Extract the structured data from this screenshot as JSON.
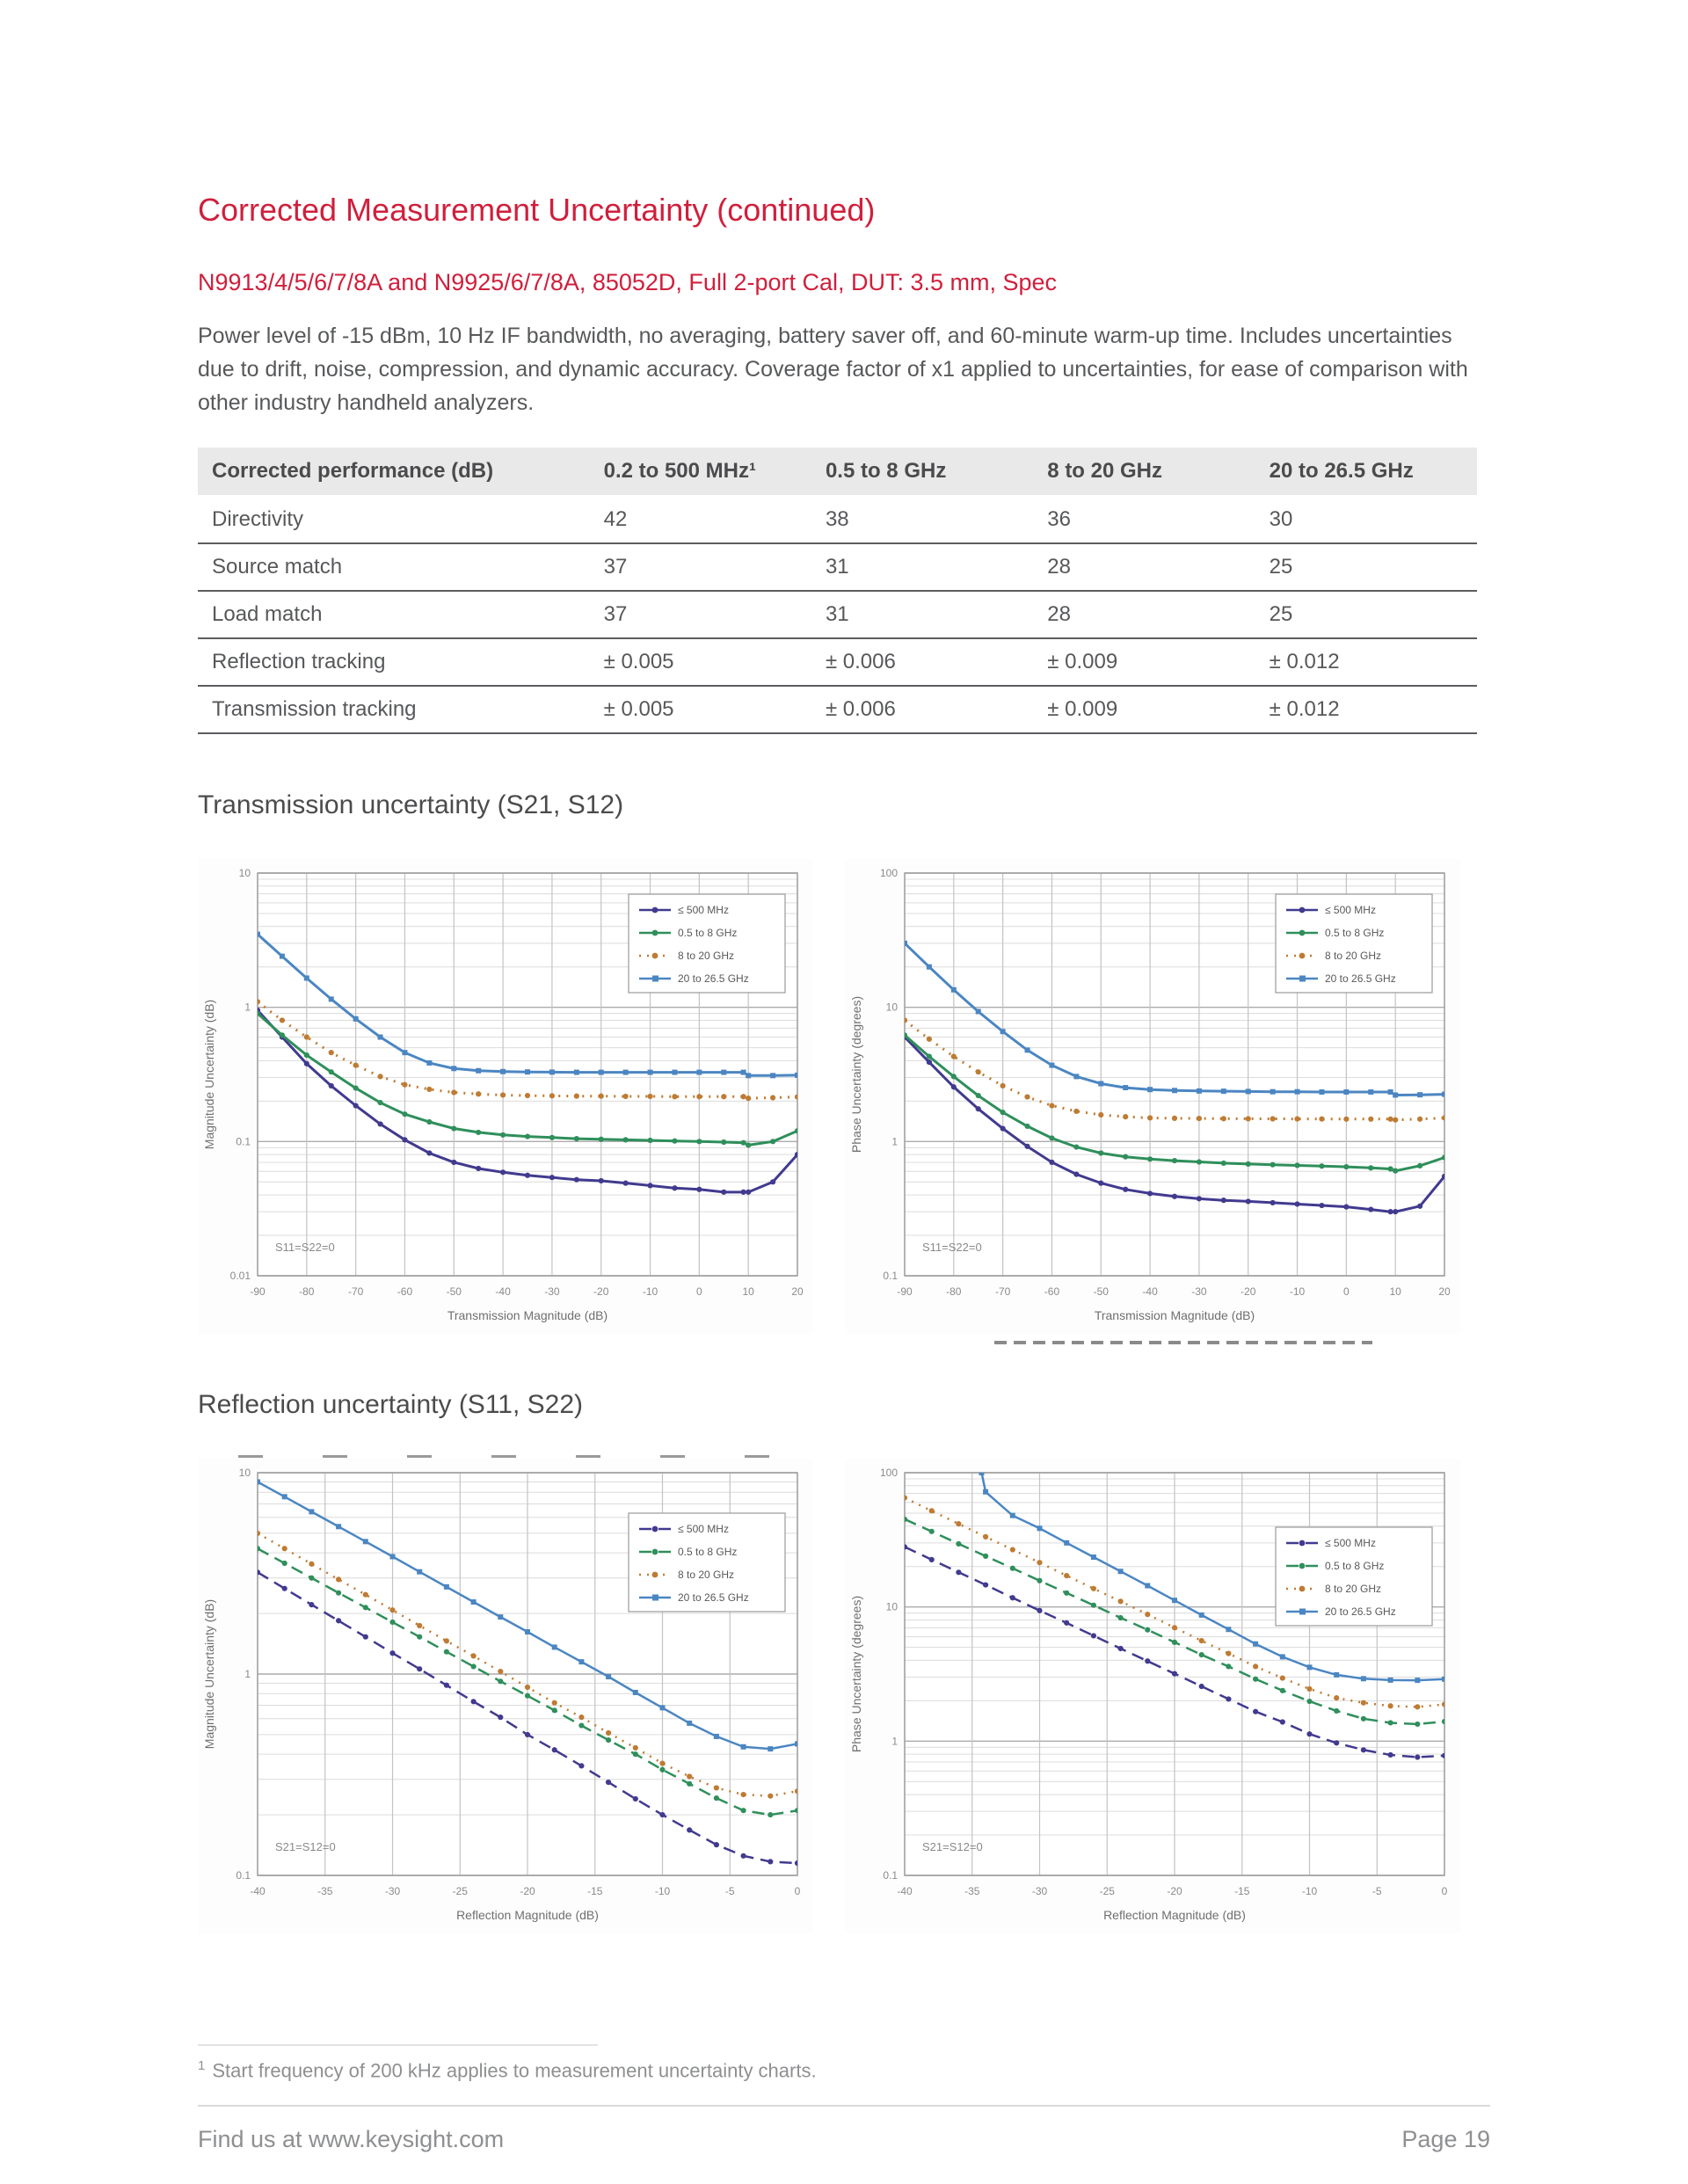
{
  "page": {
    "title": "Corrected Measurement Uncertainty (continued)",
    "subtitle": "N9913/4/5/6/7/8A and N9925/6/7/8A, 85052D, Full 2-port Cal, DUT: 3.5 mm, Spec",
    "intro": "Power level of -15 dBm, 10 Hz IF bandwidth, no averaging, battery saver off, and 60-minute warm-up time. Includes uncertainties due to drift, noise, compression, and dynamic accuracy. Coverage factor of x1 applied to uncertainties, for ease of comparison with other industry handheld analyzers.",
    "footnote_marker": "1",
    "footnote": "Start frequency of 200 kHz applies to measurement uncertainty charts.",
    "footer_left": "Find us at www.keysight.com",
    "footer_right": "Page 19"
  },
  "sections": {
    "transmission": "Transmission uncertainty (S21, S12)",
    "reflection": "Reflection uncertainty (S11, S22)"
  },
  "table": {
    "headers": [
      "Corrected performance (dB)",
      "0.2 to 500 MHz¹",
      "0.5 to 8 GHz",
      "8 to 20 GHz",
      "20 to 26.5 GHz"
    ],
    "rows": [
      [
        "Directivity",
        "42",
        "38",
        "36",
        "30"
      ],
      [
        "Source match",
        "37",
        "31",
        "28",
        "25"
      ],
      [
        "Load match",
        "37",
        "31",
        "28",
        "25"
      ],
      [
        "Reflection tracking",
        "± 0.005",
        "± 0.006",
        "± 0.009",
        "± 0.012"
      ],
      [
        "Transmission tracking",
        "± 0.005",
        "± 0.006",
        "± 0.009",
        "± 0.012"
      ]
    ]
  },
  "colors": {
    "heading_red": "#D01F3C",
    "body_gray": "#57585A",
    "series_500mhz": "#413A8F",
    "series_0p5to8": "#2F8F5B",
    "series_8to20": "#BE7B33",
    "series_20to26p5": "#4B86C2"
  },
  "chart_data": [
    {
      "type": "line",
      "name": "transmission-magnitude-chart",
      "xlabel": "Transmission Magnitude (dB)",
      "ylabel": "Magnitude Uncertainty  (dB)",
      "annotation": "S11=S22=0",
      "xlim": [
        -90,
        20
      ],
      "xticks": [
        -90,
        -80,
        -70,
        -60,
        -50,
        -40,
        -30,
        -20,
        -10,
        0,
        10,
        20
      ],
      "ylog": true,
      "ylim": [
        0.01,
        10
      ],
      "legend_position": "top-right",
      "legend_dy": 24,
      "grid": true,
      "line_width": 3,
      "x": [
        -90,
        -85,
        -80,
        -75,
        -70,
        -65,
        -60,
        -55,
        -50,
        -45,
        -40,
        -35,
        -30,
        -25,
        -20,
        -15,
        -10,
        -5,
        0,
        5,
        9,
        10,
        15,
        20
      ],
      "series": [
        {
          "name": "≤ 500 MHz",
          "color": "#413A8F",
          "dash": "none",
          "marker": "circle",
          "y": [
            0.95,
            0.6,
            0.38,
            0.26,
            0.185,
            0.135,
            0.103,
            0.082,
            0.07,
            0.063,
            0.059,
            0.056,
            0.054,
            0.052,
            0.051,
            0.049,
            0.047,
            0.045,
            0.044,
            0.042,
            0.042,
            0.042,
            0.05,
            0.08
          ]
        },
        {
          "name": "0.5 to 8 GHz",
          "color": "#2F8F5B",
          "dash": "none",
          "marker": "circle",
          "y": [
            0.9,
            0.62,
            0.44,
            0.33,
            0.25,
            0.195,
            0.16,
            0.14,
            0.125,
            0.117,
            0.112,
            0.109,
            0.107,
            0.105,
            0.104,
            0.103,
            0.102,
            0.101,
            0.1,
            0.099,
            0.098,
            0.094,
            0.1,
            0.12
          ]
        },
        {
          "name": "8 to 20 GHz",
          "color": "#BE7B33",
          "dash": "2 7",
          "marker": "circle",
          "y": [
            1.1,
            0.8,
            0.6,
            0.46,
            0.37,
            0.305,
            0.265,
            0.245,
            0.232,
            0.226,
            0.222,
            0.22,
            0.219,
            0.218,
            0.218,
            0.217,
            0.217,
            0.216,
            0.216,
            0.216,
            0.216,
            0.21,
            0.212,
            0.215
          ]
        },
        {
          "name": "20 to 26.5 GHz",
          "color": "#4B86C2",
          "dash": "none",
          "marker": "square",
          "y": [
            3.5,
            2.4,
            1.65,
            1.15,
            0.82,
            0.6,
            0.46,
            0.385,
            0.35,
            0.337,
            0.332,
            0.33,
            0.329,
            0.328,
            0.328,
            0.328,
            0.328,
            0.328,
            0.328,
            0.328,
            0.328,
            0.31,
            0.31,
            0.312
          ]
        }
      ]
    },
    {
      "type": "line",
      "name": "transmission-phase-chart",
      "xlabel": "Transmission Magnitude (dB)",
      "ylabel": "Phase Uncertainty (degrees)",
      "annotation": "S11=S22=0",
      "xlim": [
        -90,
        20
      ],
      "xticks": [
        -90,
        -80,
        -70,
        -60,
        -50,
        -40,
        -30,
        -20,
        -10,
        0,
        10,
        20
      ],
      "ylog": true,
      "ylim": [
        0.1,
        100
      ],
      "legend_position": "top-right",
      "legend_dy": 24,
      "grid": true,
      "line_width": 3,
      "x": [
        -90,
        -85,
        -80,
        -75,
        -70,
        -65,
        -60,
        -55,
        -50,
        -45,
        -40,
        -35,
        -30,
        -25,
        -20,
        -15,
        -10,
        -5,
        0,
        5,
        9,
        10,
        15,
        20
      ],
      "series": [
        {
          "name": "≤ 500 MHz",
          "color": "#413A8F",
          "dash": "none",
          "marker": "circle",
          "y": [
            6.0,
            3.9,
            2.55,
            1.75,
            1.25,
            0.92,
            0.7,
            0.57,
            0.49,
            0.44,
            0.41,
            0.39,
            0.375,
            0.365,
            0.358,
            0.35,
            0.342,
            0.334,
            0.326,
            0.312,
            0.3,
            0.3,
            0.33,
            0.55
          ]
        },
        {
          "name": "0.5 to 8 GHz",
          "color": "#2F8F5B",
          "dash": "none",
          "marker": "circle",
          "y": [
            6.2,
            4.3,
            3.05,
            2.2,
            1.65,
            1.3,
            1.06,
            0.91,
            0.82,
            0.77,
            0.74,
            0.72,
            0.705,
            0.69,
            0.68,
            0.672,
            0.664,
            0.656,
            0.648,
            0.636,
            0.625,
            0.605,
            0.66,
            0.76
          ]
        },
        {
          "name": "8 to 20 GHz",
          "color": "#BE7B33",
          "dash": "2 7",
          "marker": "circle",
          "y": [
            8.0,
            5.8,
            4.3,
            3.3,
            2.6,
            2.15,
            1.85,
            1.68,
            1.58,
            1.53,
            1.5,
            1.49,
            1.485,
            1.48,
            1.478,
            1.476,
            1.474,
            1.472,
            1.47,
            1.47,
            1.47,
            1.45,
            1.47,
            1.5
          ]
        },
        {
          "name": "20 to 26.5 GHz",
          "color": "#4B86C2",
          "dash": "none",
          "marker": "square",
          "y": [
            30,
            20,
            13.5,
            9.3,
            6.6,
            4.8,
            3.7,
            3.05,
            2.7,
            2.52,
            2.44,
            2.4,
            2.38,
            2.37,
            2.36,
            2.35,
            2.35,
            2.34,
            2.34,
            2.34,
            2.34,
            2.22,
            2.23,
            2.25
          ]
        }
      ]
    },
    {
      "type": "line",
      "name": "reflection-magnitude-chart",
      "xlabel": "Reflection Magnitude (dB)",
      "ylabel": "Magnitude Uncertainty (dB)",
      "annotation": "S21=S12=0",
      "xlim": [
        -40,
        0
      ],
      "xticks": [
        -40,
        -35,
        -30,
        -25,
        -20,
        -15,
        -10,
        -5,
        0
      ],
      "ylog": true,
      "ylim": [
        0.1,
        10
      ],
      "legend_position": "top-right",
      "legend_dy": 46,
      "grid": true,
      "line_width": 2.5,
      "x": [
        -40,
        -38,
        -36,
        -34,
        -32,
        -30,
        -28,
        -26,
        -24,
        -22,
        -20,
        -18,
        -16,
        -14,
        -12,
        -10,
        -8,
        -6,
        -4,
        -2,
        0
      ],
      "series": [
        {
          "name": "≤ 500 MHz",
          "color": "#413A8F",
          "dash": "14 8",
          "marker": "circle",
          "y": [
            3.2,
            2.66,
            2.21,
            1.84,
            1.53,
            1.27,
            1.06,
            0.88,
            0.73,
            0.61,
            0.5,
            0.42,
            0.35,
            0.29,
            0.24,
            0.2,
            0.168,
            0.142,
            0.125,
            0.117,
            0.115
          ]
        },
        {
          "name": "0.5 to 8 GHz",
          "color": "#2F8F5B",
          "dash": "14 8",
          "marker": "circle",
          "y": [
            4.2,
            3.55,
            3.0,
            2.53,
            2.14,
            1.81,
            1.53,
            1.29,
            1.09,
            0.92,
            0.78,
            0.66,
            0.555,
            0.47,
            0.4,
            0.335,
            0.285,
            0.242,
            0.21,
            0.2,
            0.21
          ]
        },
        {
          "name": "8 to 20 GHz",
          "color": "#BE7B33",
          "dash": "2 7",
          "marker": "circle",
          "y": [
            5.0,
            4.2,
            3.52,
            2.95,
            2.48,
            2.08,
            1.74,
            1.46,
            1.23,
            1.03,
            0.86,
            0.72,
            0.61,
            0.51,
            0.43,
            0.36,
            0.31,
            0.272,
            0.252,
            0.248,
            0.262
          ]
        },
        {
          "name": "20 to 26.5 GHz",
          "color": "#4B86C2",
          "dash": "none",
          "marker": "square",
          "y": [
            9.0,
            7.6,
            6.4,
            5.4,
            4.55,
            3.83,
            3.22,
            2.71,
            2.28,
            1.92,
            1.62,
            1.36,
            1.15,
            0.97,
            0.81,
            0.68,
            0.57,
            0.49,
            0.435,
            0.425,
            0.45
          ]
        }
      ]
    },
    {
      "type": "line",
      "name": "reflection-phase-chart",
      "xlabel": "Reflection Magnitude (dB)",
      "ylabel": "Phase Uncertainty (degrees)",
      "annotation": "S21=S12=0",
      "xlim": [
        -40,
        0
      ],
      "xticks": [
        -40,
        -35,
        -30,
        -25,
        -20,
        -15,
        -10,
        -5,
        0
      ],
      "ylog": true,
      "ylim": [
        0.1,
        100
      ],
      "legend_position": "top-right",
      "legend_dy": 62,
      "grid": true,
      "line_width": 2.5,
      "x": [
        -40,
        -38,
        -36,
        -34,
        -32,
        -30,
        -28,
        -26,
        -24,
        -22,
        -20,
        -18,
        -16,
        -14,
        -12,
        -10,
        -8,
        -6,
        -4,
        -2,
        0
      ],
      "series": [
        {
          "name": "≤ 500 MHz",
          "color": "#413A8F",
          "dash": "14 8",
          "marker": "circle",
          "y": [
            28,
            22.5,
            18.1,
            14.6,
            11.7,
            9.4,
            7.6,
            6.1,
            4.9,
            3.95,
            3.18,
            2.56,
            2.06,
            1.66,
            1.39,
            1.13,
            0.97,
            0.86,
            0.79,
            0.76,
            0.78
          ]
        },
        {
          "name": "0.5 to 8 GHz",
          "color": "#2F8F5B",
          "dash": "14 8",
          "marker": "circle",
          "y": [
            45,
            36.5,
            29.5,
            23.9,
            19.4,
            15.7,
            12.7,
            10.3,
            8.3,
            6.75,
            5.45,
            4.4,
            3.6,
            2.9,
            2.38,
            1.98,
            1.68,
            1.47,
            1.37,
            1.34,
            1.4
          ]
        },
        {
          "name": "8 to 20 GHz",
          "color": "#BE7B33",
          "dash": "2 7",
          "marker": "circle",
          "y": [
            65,
            52,
            41.6,
            33.3,
            26.7,
            21.4,
            17.1,
            13.7,
            11.0,
            8.8,
            7.0,
            5.6,
            4.5,
            3.6,
            2.95,
            2.45,
            2.1,
            1.93,
            1.83,
            1.8,
            1.88
          ]
        },
        {
          "name": "20 to 26.5 GHz",
          "color": "#4B86C2",
          "dash": "none",
          "marker": "square",
          "x": [
            -34.3,
            -34,
            -32,
            -30,
            -28,
            -26,
            -24,
            -22,
            -20,
            -18,
            -16,
            -14,
            -12,
            -10,
            -8,
            -6,
            -4,
            -2,
            0
          ],
          "y": [
            100,
            72,
            48,
            38.5,
            30,
            23.5,
            18.4,
            14.4,
            11.2,
            8.7,
            6.8,
            5.3,
            4.25,
            3.55,
            3.12,
            2.92,
            2.85,
            2.84,
            2.9
          ]
        }
      ]
    }
  ]
}
